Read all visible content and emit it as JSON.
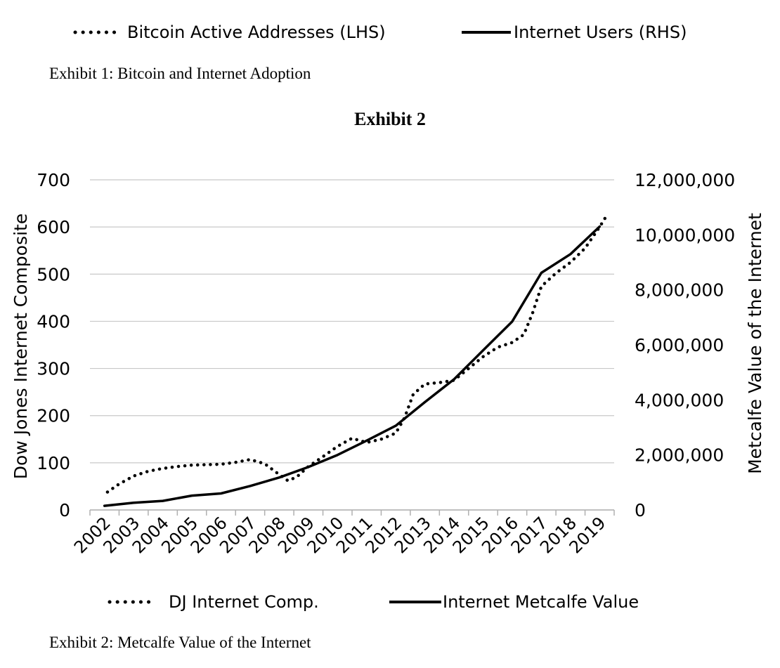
{
  "exhibit1": {
    "legend": [
      {
        "label": "Bitcoin Active Addresses (LHS)",
        "style": "dotted"
      },
      {
        "label": "Internet Users (RHS)",
        "style": "solid"
      }
    ],
    "caption": "Exhibit 1:  Bitcoin and Internet Adoption"
  },
  "exhibit2": {
    "title": "Exhibit 2",
    "caption": "Exhibit 2:  Metcalfe Value of the Internet",
    "legend": [
      {
        "label": "DJ Internet Comp.",
        "style": "dotted"
      },
      {
        "label": "Internet Metcalfe Value",
        "style": "solid"
      }
    ]
  },
  "chart_data": {
    "type": "line",
    "title": "Exhibit 2",
    "categories": [
      "2002",
      "2003",
      "2004",
      "2005",
      "2006",
      "2007",
      "2008",
      "2009",
      "2010",
      "2011",
      "2012",
      "2013",
      "2014",
      "2015",
      "2016",
      "2017",
      "2018",
      "2019"
    ],
    "ylabel": "Dow Jones Internet Composite",
    "y2label": "Metcalfe Value of the Internet",
    "ylim": [
      0,
      700
    ],
    "y2lim": [
      0,
      12000000
    ],
    "yticks": [
      "0",
      "100",
      "200",
      "300",
      "400",
      "500",
      "600",
      "700"
    ],
    "y2ticks": [
      "0",
      "2,000,000",
      "4,000,000",
      "6,000,000",
      "8,000,000",
      "10,000,000",
      "12,000,000"
    ],
    "grid": true,
    "legend_position": "bottom",
    "series": [
      {
        "name": "DJ Internet Comp.",
        "axis": "left",
        "style": "dotted",
        "color": "#000000",
        "x": [
          2002.1,
          2002.5,
          2003.0,
          2003.5,
          2004.0,
          2004.5,
          2005.0,
          2005.5,
          2006.0,
          2006.5,
          2007.0,
          2007.5,
          2008.0,
          2008.3,
          2008.6,
          2009.0,
          2009.5,
          2010.0,
          2010.5,
          2011.0,
          2011.5,
          2012.0,
          2012.3,
          2012.6,
          2013.0,
          2013.5,
          2014.0,
          2014.5,
          2015.0,
          2015.5,
          2016.0,
          2016.4,
          2016.7,
          2017.0,
          2017.5,
          2018.0,
          2018.5,
          2019.0,
          2019.2
        ],
        "y": [
          38,
          55,
          72,
          82,
          88,
          92,
          95,
          96,
          97,
          101,
          107,
          98,
          75,
          62,
          70,
          92,
          113,
          135,
          152,
          143,
          150,
          163,
          195,
          245,
          267,
          270,
          275,
          300,
          325,
          345,
          355,
          372,
          418,
          474,
          502,
          525,
          555,
          600,
          620
        ]
      },
      {
        "name": "Internet Metcalfe Value",
        "axis": "right",
        "style": "solid",
        "color": "#000000",
        "x": [
          2002,
          2003,
          2004,
          2005,
          2006,
          2007,
          2008,
          2009,
          2010,
          2011,
          2012,
          2013,
          2014,
          2015,
          2016,
          2017,
          2018,
          2019
        ],
        "y": [
          150000,
          260000,
          330000,
          520000,
          600000,
          870000,
          1180000,
          1560000,
          2000000,
          2520000,
          3060000,
          3920000,
          4750000,
          5800000,
          6850000,
          8620000,
          9300000,
          10300000
        ]
      }
    ]
  }
}
